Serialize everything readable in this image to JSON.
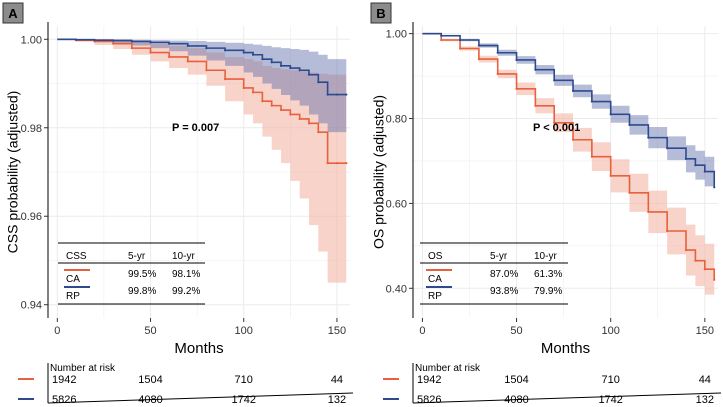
{
  "colors": {
    "ca": "#e8603c",
    "rp": "#2e4a8f",
    "ca_band": "#f4b6a6",
    "rp_band": "#5a6aa8",
    "grid": "#ebebeb",
    "panel_label_bg": "#8c8c8c"
  },
  "risk_table": {
    "title": "Number at risk",
    "times": [
      0,
      50,
      100,
      150
    ],
    "rows": [
      {
        "group": "CA",
        "values": [
          "1942",
          "1504",
          "710",
          "44"
        ]
      },
      {
        "group": "RP",
        "values": [
          "5826",
          "4080",
          "1742",
          "132"
        ]
      }
    ]
  },
  "chart_data": [
    {
      "panel": "A",
      "type": "line",
      "title": "",
      "xlabel": "Months",
      "ylabel": "CSS probability (adjusted)",
      "xlim": [
        -5,
        157
      ],
      "ylim": [
        0.937,
        1.003
      ],
      "xticks": [
        "0",
        "50",
        "100",
        "150"
      ],
      "yticks": [
        "0.94",
        "0.96",
        "0.98",
        "1.00"
      ],
      "ytick_values": [
        0.94,
        0.96,
        0.98,
        1.0
      ],
      "p_value": "P = 0.007",
      "series": [
        {
          "name": "CA",
          "x": [
            0,
            10,
            20,
            30,
            40,
            50,
            60,
            70,
            80,
            90,
            100,
            105,
            110,
            115,
            120,
            125,
            130,
            135,
            140,
            145,
            150,
            155
          ],
          "y": [
            1.0,
            0.9998,
            0.9995,
            0.999,
            0.998,
            0.997,
            0.996,
            0.995,
            0.993,
            0.991,
            0.989,
            0.988,
            0.986,
            0.985,
            0.984,
            0.983,
            0.982,
            0.981,
            0.979,
            0.972,
            0.972,
            0.972
          ],
          "lower": [
            1.0,
            0.9994,
            0.9987,
            0.9978,
            0.9965,
            0.995,
            0.9935,
            0.992,
            0.9895,
            0.986,
            0.983,
            0.981,
            0.978,
            0.975,
            0.972,
            0.968,
            0.964,
            0.958,
            0.952,
            0.945,
            0.945,
            0.945
          ],
          "upper": [
            1.0,
            1.0,
            1.0,
            0.9998,
            0.9994,
            0.999,
            0.9985,
            0.998,
            0.997,
            0.996,
            0.9955,
            0.995,
            0.994,
            0.9935,
            0.9932,
            0.993,
            0.9928,
            0.9925,
            0.9922,
            0.992,
            0.992,
            0.992
          ]
        },
        {
          "name": "RP",
          "x": [
            0,
            10,
            20,
            30,
            40,
            50,
            60,
            70,
            80,
            90,
            100,
            105,
            110,
            115,
            120,
            125,
            130,
            135,
            140,
            145,
            150,
            155
          ],
          "y": [
            1.0,
            0.9999,
            0.9998,
            0.9997,
            0.9995,
            0.9993,
            0.999,
            0.9985,
            0.998,
            0.9975,
            0.997,
            0.9965,
            0.9955,
            0.9948,
            0.994,
            0.9935,
            0.993,
            0.992,
            0.9903,
            0.9875,
            0.9875,
            0.9875
          ],
          "lower": [
            1.0,
            0.9997,
            0.9994,
            0.999,
            0.9986,
            0.998,
            0.9973,
            0.9963,
            0.9952,
            0.994,
            0.9925,
            0.9915,
            0.99,
            0.9888,
            0.9874,
            0.9862,
            0.985,
            0.983,
            0.981,
            0.979,
            0.979,
            0.979
          ],
          "upper": [
            1.0,
            1.0,
            1.0,
            1.0,
            0.9999,
            0.9998,
            0.9997,
            0.9996,
            0.9994,
            0.9992,
            0.999,
            0.9988,
            0.9985,
            0.9982,
            0.998,
            0.9978,
            0.9976,
            0.9972,
            0.9965,
            0.9955,
            0.9955,
            0.9955
          ]
        }
      ],
      "legend": {
        "header": [
          "CSS",
          "5-yr",
          "10-yr"
        ],
        "rows": [
          {
            "group": "CA",
            "values": [
              "99.5%",
              "98.1%"
            ]
          },
          {
            "group": "RP",
            "values": [
              "99.8%",
              "99.2%"
            ]
          }
        ]
      }
    },
    {
      "panel": "B",
      "type": "line",
      "title": "",
      "xlabel": "Months",
      "ylabel": "OS probability (adjusted)",
      "xlim": [
        -5,
        157
      ],
      "ylim": [
        0.33,
        1.018
      ],
      "xticks": [
        "0",
        "50",
        "100",
        "150"
      ],
      "yticks": [
        "0.40",
        "0.60",
        "0.80",
        "1.00"
      ],
      "ytick_values": [
        0.4,
        0.6,
        0.8,
        1.0
      ],
      "p_value": "P < 0.001",
      "series": [
        {
          "name": "CA",
          "x": [
            0,
            10,
            20,
            30,
            40,
            50,
            60,
            70,
            80,
            90,
            100,
            110,
            120,
            130,
            140,
            145,
            150,
            155
          ],
          "y": [
            1.0,
            0.985,
            0.965,
            0.94,
            0.905,
            0.87,
            0.83,
            0.79,
            0.75,
            0.71,
            0.665,
            0.625,
            0.58,
            0.535,
            0.49,
            0.465,
            0.445,
            0.42
          ],
          "lower": [
            1.0,
            0.982,
            0.96,
            0.932,
            0.895,
            0.855,
            0.812,
            0.768,
            0.722,
            0.676,
            0.626,
            0.58,
            0.53,
            0.48,
            0.43,
            0.405,
            0.385,
            0.36
          ],
          "upper": [
            1.0,
            0.988,
            0.97,
            0.948,
            0.915,
            0.885,
            0.848,
            0.812,
            0.778,
            0.744,
            0.704,
            0.67,
            0.63,
            0.59,
            0.55,
            0.525,
            0.505,
            0.48
          ]
        },
        {
          "name": "RP",
          "x": [
            0,
            10,
            20,
            30,
            40,
            50,
            60,
            70,
            80,
            90,
            100,
            110,
            120,
            130,
            140,
            145,
            150,
            155
          ],
          "y": [
            1.0,
            0.995,
            0.985,
            0.972,
            0.955,
            0.938,
            0.915,
            0.89,
            0.865,
            0.84,
            0.81,
            0.785,
            0.755,
            0.73,
            0.705,
            0.69,
            0.675,
            0.638
          ],
          "lower": [
            1.0,
            0.993,
            0.982,
            0.967,
            0.948,
            0.929,
            0.904,
            0.877,
            0.85,
            0.823,
            0.79,
            0.762,
            0.73,
            0.702,
            0.673,
            0.656,
            0.64,
            0.6
          ],
          "upper": [
            1.0,
            0.997,
            0.988,
            0.977,
            0.962,
            0.947,
            0.926,
            0.903,
            0.88,
            0.857,
            0.83,
            0.808,
            0.78,
            0.758,
            0.737,
            0.724,
            0.71,
            0.676
          ]
        }
      ],
      "legend": {
        "header": [
          "OS",
          "5-yr",
          "10-yr"
        ],
        "rows": [
          {
            "group": "CA",
            "values": [
              "87.0%",
              "61.3%"
            ]
          },
          {
            "group": "RP",
            "values": [
              "93.8%",
              "79.9%"
            ]
          }
        ]
      }
    }
  ]
}
